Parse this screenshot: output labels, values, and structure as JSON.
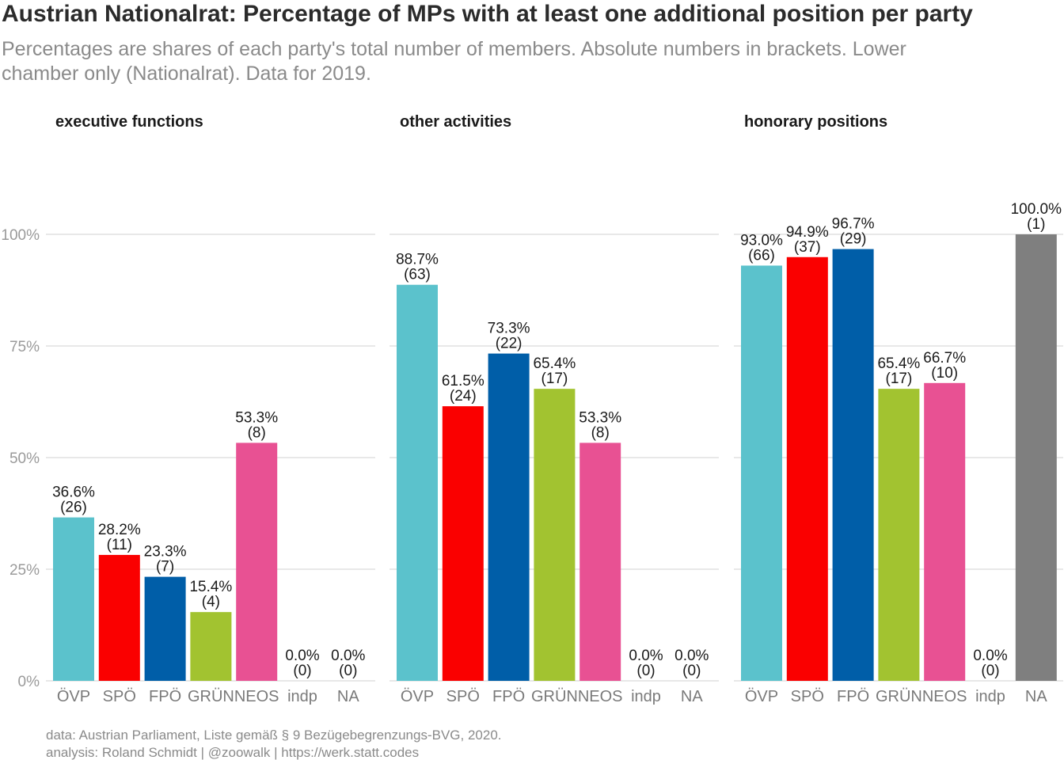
{
  "title": "Austrian Nationalrat: Percentage of MPs with at least one additional position per party",
  "subtitle_line1": "Percentages are shares of each party's total number of members. Absolute numbers in brackets. Lower",
  "subtitle_line2": "chamber only (Nationalrat). Data for 2019.",
  "caption_line1": "data: Austrian Parliament, Liste gemäß § 9 Bezügebegrenzungs-BVG, 2020.",
  "caption_line2": "analysis: Roland Schmidt | @zoowalk | https://werk.statt.codes",
  "colors": {
    "ÖVP": "#5bc2cc",
    "SPÖ": "#fa0000",
    "FPÖ": "#005ea8",
    "GRÜN": "#a2c330",
    "NEOS": "#e85193",
    "indp": "#999999",
    "NA": "#7f7f7f"
  },
  "chart_data": {
    "type": "bar",
    "ylim": [
      0,
      100
    ],
    "y_ticks": [
      "0%",
      "25%",
      "50%",
      "75%",
      "100%"
    ],
    "y_tick_values": [
      0,
      25,
      50,
      75,
      100
    ],
    "grid": true,
    "categories": [
      "ÖVP",
      "SPÖ",
      "FPÖ",
      "GRÜN",
      "NEOS",
      "indp",
      "NA"
    ],
    "facets": [
      {
        "name": "executive functions",
        "categories": [
          "ÖVP",
          "SPÖ",
          "FPÖ",
          "GRÜN",
          "NEOS",
          "indp",
          "NA"
        ],
        "values": [
          36.6,
          28.2,
          23.3,
          15.4,
          53.3,
          0.0,
          0.0
        ],
        "counts": [
          26,
          11,
          7,
          4,
          8,
          0,
          0
        ],
        "pct_labels": [
          "36.6%",
          "28.2%",
          "23.3%",
          "15.4%",
          "53.3%",
          "0.0%",
          "0.0%"
        ],
        "count_labels": [
          "(26)",
          "(11)",
          "(7)",
          "(4)",
          "(8)",
          "(0)",
          "(0)"
        ]
      },
      {
        "name": "other activities",
        "categories": [
          "ÖVP",
          "SPÖ",
          "FPÖ",
          "GRÜN",
          "NEOS",
          "indp",
          "NA"
        ],
        "values": [
          88.7,
          61.5,
          73.3,
          65.4,
          53.3,
          0.0,
          0.0
        ],
        "counts": [
          63,
          24,
          22,
          17,
          8,
          0,
          0
        ],
        "pct_labels": [
          "88.7%",
          "61.5%",
          "73.3%",
          "65.4%",
          "53.3%",
          "0.0%",
          "0.0%"
        ],
        "count_labels": [
          "(63)",
          "(24)",
          "(22)",
          "(17)",
          "(8)",
          "(0)",
          "(0)"
        ]
      },
      {
        "name": "honorary positions",
        "categories": [
          "ÖVP",
          "SPÖ",
          "FPÖ",
          "GRÜN",
          "NEOS",
          "indp",
          "NA"
        ],
        "values": [
          93.0,
          94.9,
          96.7,
          65.4,
          66.7,
          0.0,
          100.0
        ],
        "counts": [
          66,
          37,
          29,
          17,
          10,
          0,
          1
        ],
        "pct_labels": [
          "93.0%",
          "94.9%",
          "96.7%",
          "65.4%",
          "66.7%",
          "0.0%",
          "100.0%"
        ],
        "count_labels": [
          "(66)",
          "(37)",
          "(29)",
          "(17)",
          "(10)",
          "(0)",
          "(1)"
        ]
      }
    ]
  }
}
